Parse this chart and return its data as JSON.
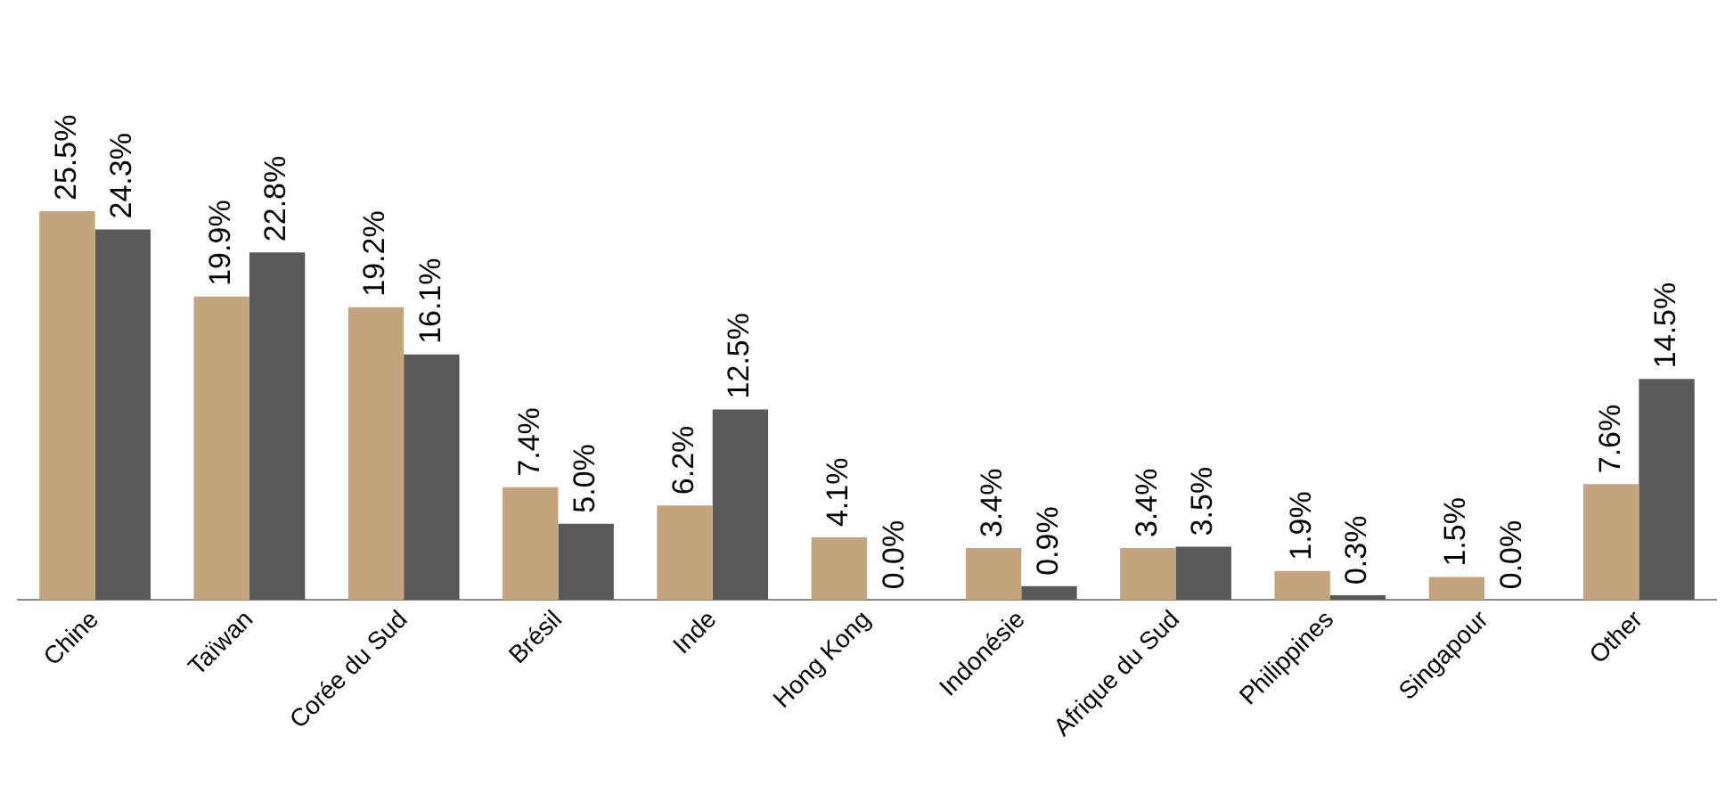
{
  "chart_data": {
    "type": "bar",
    "categories": [
      "Chine",
      "Taïwan",
      "Corée du Sud",
      "Brésil",
      "Inde",
      "Hong Kong",
      "Indonésie",
      "Afrique du Sud",
      "Philippines",
      "Singapour",
      "Other"
    ],
    "series": [
      {
        "color": "#c4a47c",
        "values": [
          25.5,
          19.9,
          19.2,
          7.4,
          6.2,
          4.1,
          3.4,
          3.4,
          1.9,
          1.5,
          7.6
        ],
        "value_labels": [
          "25.5%",
          "19.9%",
          "19.2%",
          "7.4%",
          "6.2%",
          "4.1%",
          "3.4%",
          "3.4%",
          "1.9%",
          "1.5%",
          "7.6%"
        ]
      },
      {
        "color": "#595959",
        "values": [
          24.3,
          22.8,
          16.1,
          5.0,
          12.5,
          0.0,
          0.9,
          3.5,
          0.3,
          0.0,
          14.5
        ],
        "value_labels": [
          "24.3%",
          "22.8%",
          "16.1%",
          "5.0%",
          "12.5%",
          "0.0%",
          "0.9%",
          "3.5%",
          "0.3%",
          "0.0%",
          "14.5%"
        ]
      }
    ]
  }
}
